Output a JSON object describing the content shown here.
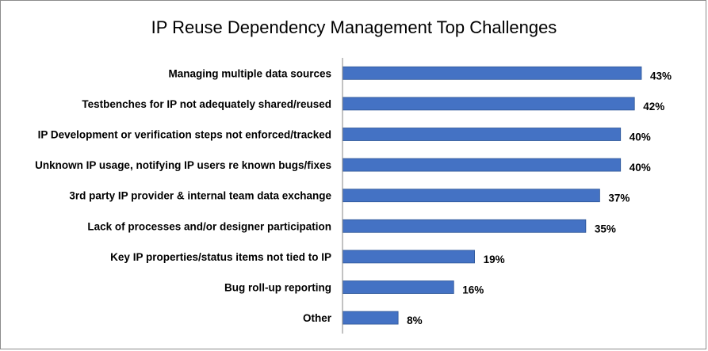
{
  "chart_data": {
    "type": "bar",
    "orientation": "horizontal",
    "title": "IP Reuse Dependency Management Top Challenges",
    "categories": [
      "Managing multiple data sources",
      "Testbenches for IP not adequately shared/reused",
      "IP Development or verification steps not enforced/tracked",
      "Unknown IP usage, notifying IP users re known bugs/fixes",
      "3rd party IP provider & internal team data exchange",
      "Lack of processes and/or designer participation",
      "Key IP properties/status items not tied to IP",
      "Bug roll-up reporting",
      "Other"
    ],
    "values": [
      43,
      42,
      40,
      40,
      37,
      35,
      19,
      16,
      8
    ],
    "value_labels": [
      "43%",
      "42%",
      "40%",
      "40%",
      "37%",
      "35%",
      "19%",
      "16%",
      "8%"
    ],
    "unit": "%",
    "xlim": [
      0,
      45
    ],
    "grid": false,
    "legend": "none",
    "bar_color": "#4472c4",
    "bar_stroke": "#2e5596",
    "axis_color": "#868686"
  }
}
